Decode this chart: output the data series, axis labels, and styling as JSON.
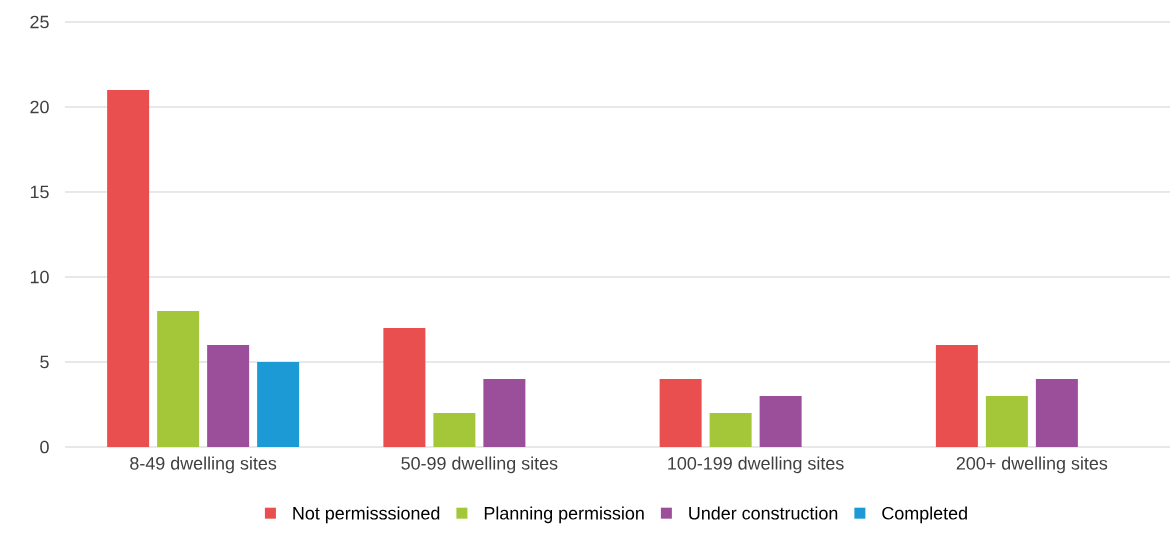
{
  "chart_data": {
    "type": "bar",
    "categories": [
      "8-49 dwelling sites",
      "50-99 dwelling sites",
      "100-199 dwelling sites",
      "200+ dwelling sites"
    ],
    "series": [
      {
        "name": "Not permisssioned",
        "color": "#e94f4f",
        "values": [
          21,
          7,
          4,
          6
        ]
      },
      {
        "name": "Planning permission",
        "color": "#a4c639",
        "values": [
          8,
          2,
          2,
          3
        ]
      },
      {
        "name": "Under construction",
        "color": "#9b4f9b",
        "values": [
          6,
          4,
          3,
          4
        ]
      },
      {
        "name": "Completed",
        "color": "#1c9ad6",
        "values": [
          5,
          0,
          0,
          0
        ]
      }
    ],
    "ylim": [
      0,
      25
    ],
    "yticks": [
      0,
      5,
      10,
      15,
      20,
      25
    ],
    "grid": "y",
    "legend": "bottom"
  }
}
